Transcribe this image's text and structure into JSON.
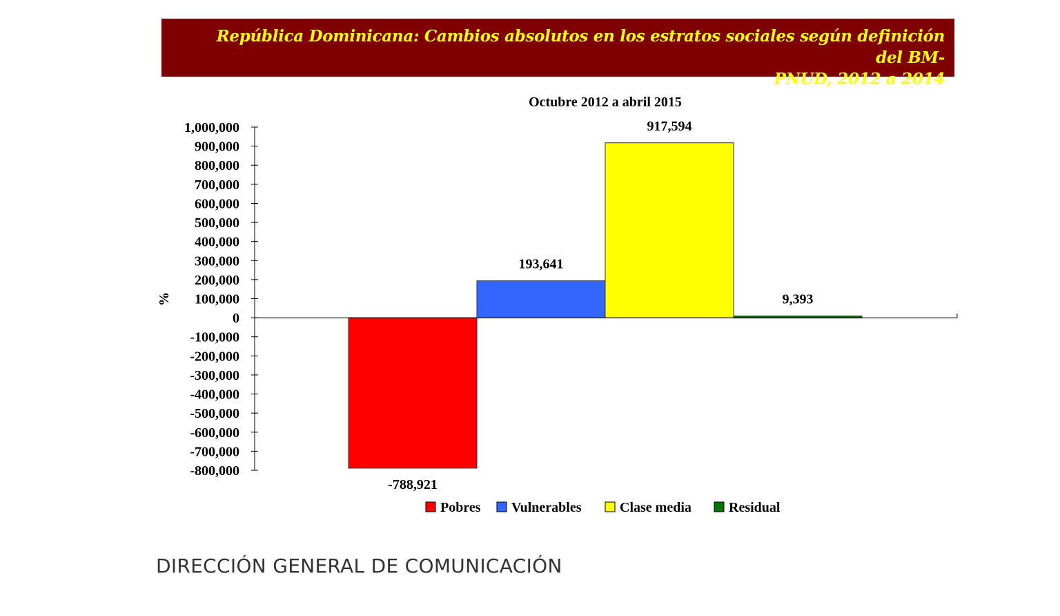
{
  "banner": {
    "line1": "República Dominicana:  Cambios absolutos en los estratos sociales según definición del BM-",
    "line2": "PNUD, 2012 a 2014",
    "bg_color": "#7f0000",
    "text_color": "#ffff00"
  },
  "chart_data": {
    "type": "bar",
    "title": "Octubre 2012 a abril 2015",
    "xlabel": "",
    "ylabel": "%",
    "ylim": [
      -800000,
      1000000
    ],
    "yticks": [
      1000000,
      900000,
      800000,
      700000,
      600000,
      500000,
      400000,
      300000,
      200000,
      100000,
      0,
      -100000,
      -200000,
      -300000,
      -400000,
      -500000,
      -600000,
      -700000,
      -800000
    ],
    "ytick_labels": [
      "1,000,000",
      "900,000",
      "800,000",
      "700,000",
      "600,000",
      "500,000",
      "400,000",
      "300,000",
      "200,000",
      "100,000",
      "0",
      "-100,000",
      "-200,000",
      "-300,000",
      "-400,000",
      "-500,000",
      "-600,000",
      "-700,000",
      "-800,000"
    ],
    "categories": [
      "Pobres",
      "Vulnerables",
      "Clase media",
      "Residual"
    ],
    "values": [
      -788921,
      193641,
      917594,
      9393
    ],
    "value_labels": [
      "-788,921",
      "193,641",
      "917,594",
      "9,393"
    ],
    "colors": [
      "#ff0000",
      "#3366ff",
      "#ffff00",
      "#007700"
    ],
    "grid": false,
    "legend_position": "bottom"
  },
  "footer": {
    "text": "DIRECCIÓN GENERAL DE COMUNICACIÓN"
  }
}
